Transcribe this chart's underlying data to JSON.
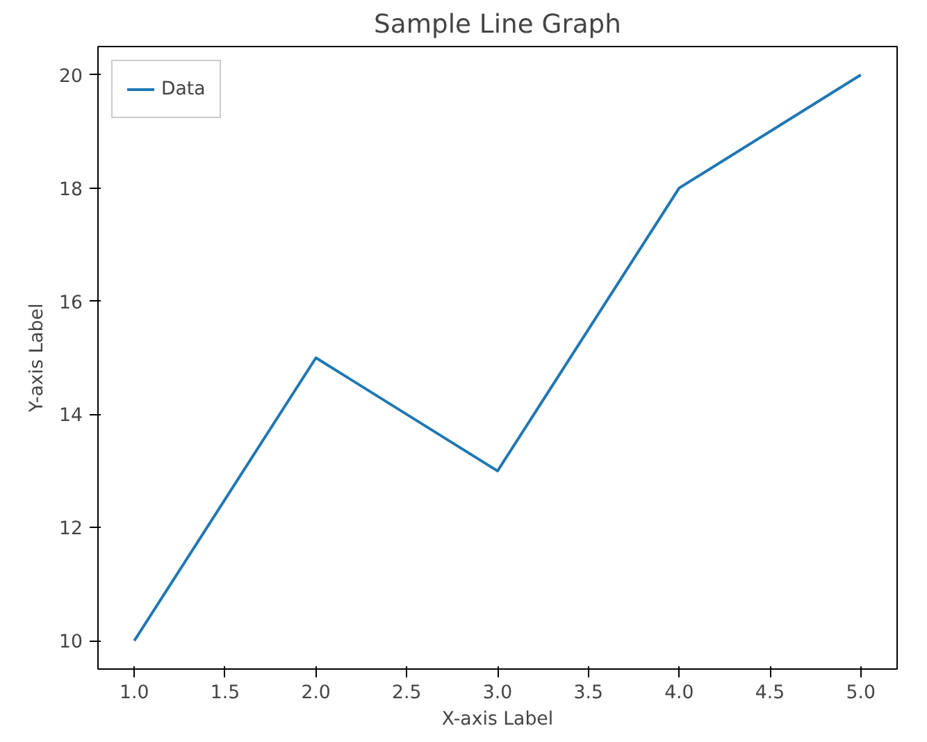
{
  "chart_data": {
    "type": "line",
    "title": "Sample Line Graph",
    "xlabel": "X-axis Label",
    "ylabel": "Y-axis Label",
    "x": [
      1,
      2,
      3,
      4,
      5
    ],
    "series": [
      {
        "name": "Data",
        "color": "#1f77b4",
        "values": [
          10,
          15,
          13,
          18,
          20
        ]
      }
    ],
    "xlim": [
      0.8,
      5.2
    ],
    "ylim": [
      9.5,
      20.5
    ],
    "xticks": [
      {
        "value": 1,
        "label": "1.0"
      },
      {
        "value": 1.5,
        "label": "1.5"
      },
      {
        "value": 2,
        "label": "2.0"
      },
      {
        "value": 2.5,
        "label": "2.5"
      },
      {
        "value": 3,
        "label": "3.0"
      },
      {
        "value": 3.5,
        "label": "3.5"
      },
      {
        "value": 4,
        "label": "4.0"
      },
      {
        "value": 4.5,
        "label": "4.5"
      },
      {
        "value": 5,
        "label": "5.0"
      }
    ],
    "yticks": [
      10,
      12,
      14,
      16,
      18,
      20
    ],
    "legend": "top left",
    "grid": false,
    "marker": "none",
    "line_style": "solid"
  }
}
